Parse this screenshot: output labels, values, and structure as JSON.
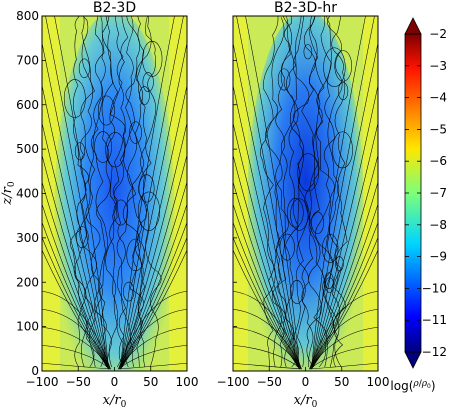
{
  "chart_data": [
    {
      "type": "heatmap",
      "title": "B2-3D",
      "xlabel": "x/r_0",
      "ylabel": "z/r_0",
      "xlim": [
        -100,
        100
      ],
      "ylim": [
        0,
        800
      ],
      "xticks": [
        "−100",
        "−50",
        "0",
        "50",
        "100"
      ],
      "yticks": [
        "0",
        "100",
        "200",
        "300",
        "400",
        "500",
        "600",
        "700",
        "800"
      ],
      "field": "log(rho/rho_0)",
      "overlay": "magnetic field lines (streamlines)"
    },
    {
      "type": "heatmap",
      "title": "B2-3D-hr",
      "xlabel": "x/r_0",
      "ylabel": "",
      "xlim": [
        -100,
        100
      ],
      "ylim": [
        0,
        800
      ],
      "xticks": [
        "−100",
        "−50",
        "0",
        "50",
        "100"
      ],
      "yticks": [],
      "field": "log(rho/rho_0)",
      "overlay": "magnetic field lines (streamlines)"
    }
  ],
  "colorbar": {
    "range": [
      -12,
      -2
    ],
    "ticks": [
      "−2",
      "−3",
      "−4",
      "−5",
      "−6",
      "−7",
      "−8",
      "−9",
      "−10",
      "−11",
      "−12"
    ],
    "label": "log(ρ/ρ0)",
    "colormap": "jet",
    "extend": "both"
  },
  "colors": {
    "background_yellow": "#e4f03a",
    "jet_low": "#00007f",
    "jet_high": "#7f0000"
  }
}
